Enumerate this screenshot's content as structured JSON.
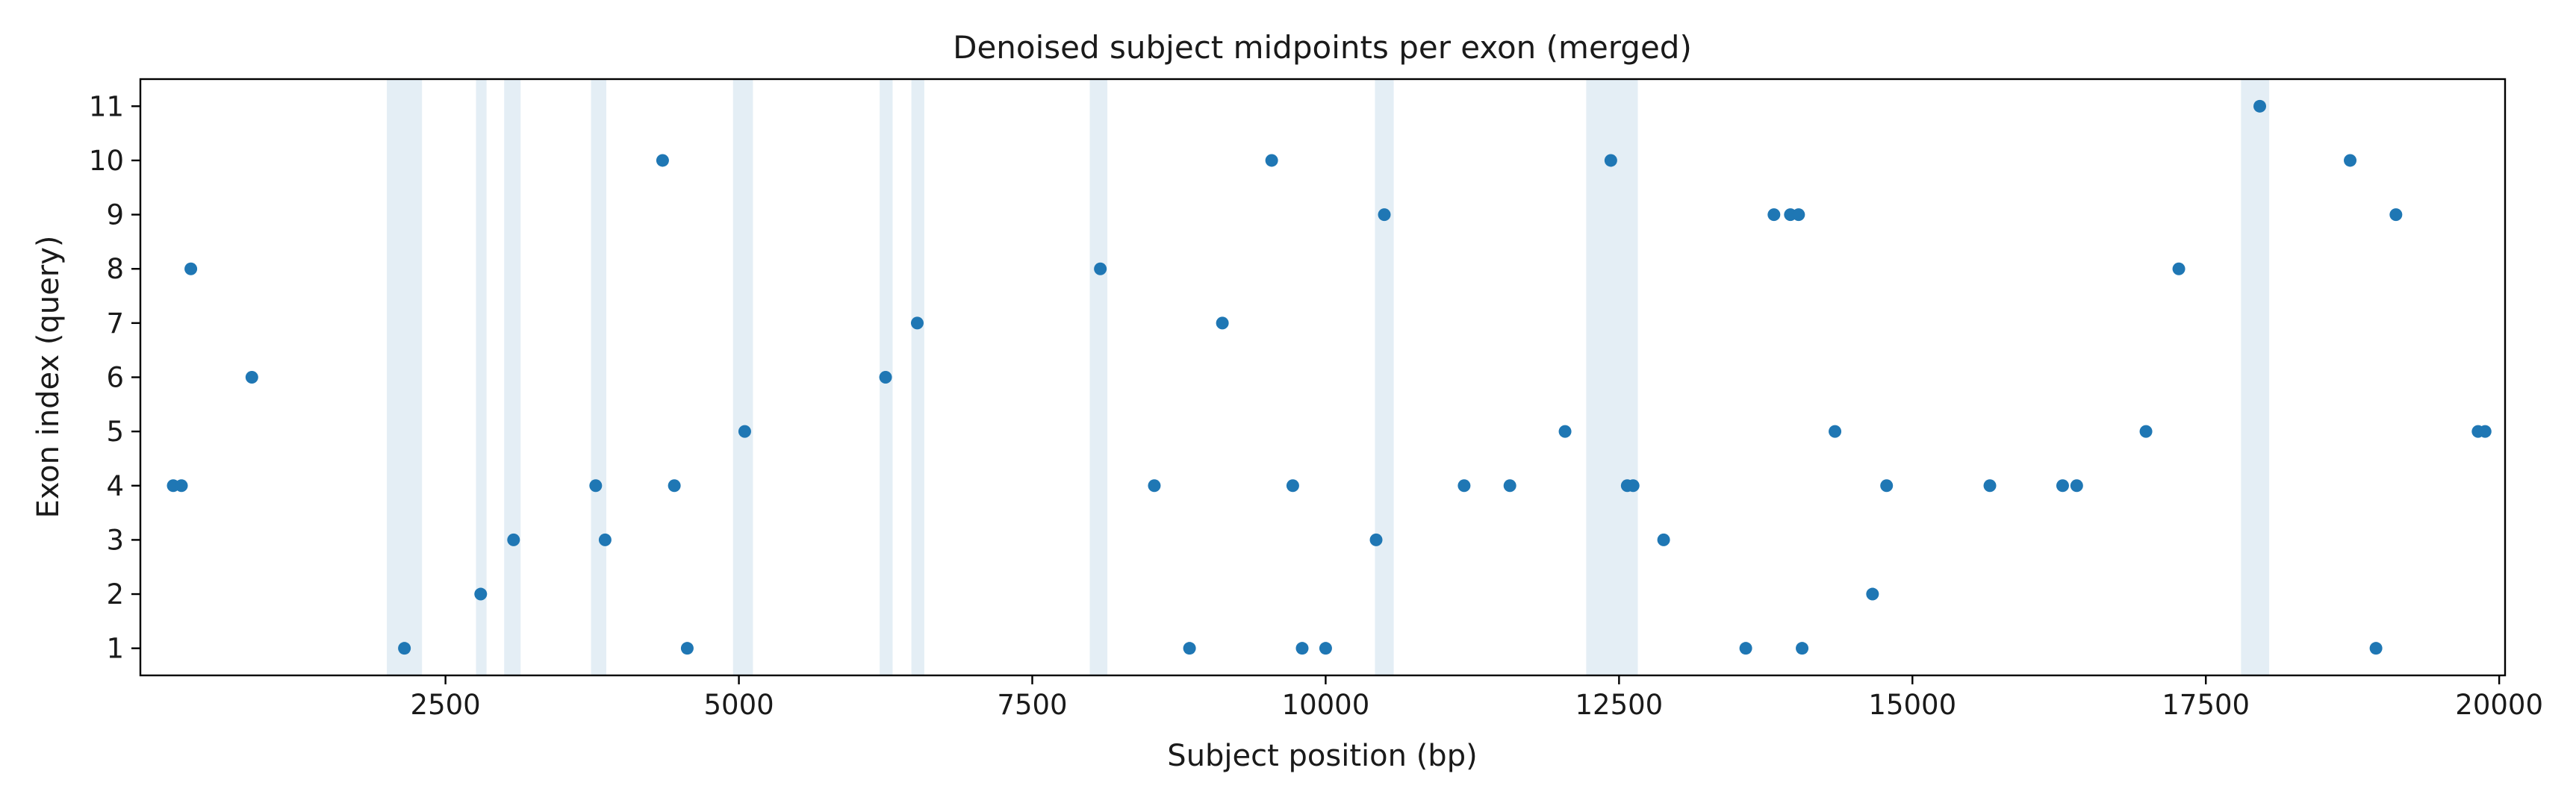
{
  "chart_data": {
    "type": "scatter",
    "title": "Denoised subject midpoints per exon (merged)",
    "xlabel": "Subject position (bp)",
    "ylabel": "Exon index (query)",
    "xlim": [
      -100,
      20050
    ],
    "ylim": [
      0.5,
      11.5
    ],
    "xticks": [
      2500,
      5000,
      7500,
      10000,
      12500,
      15000,
      17500,
      20000
    ],
    "yticks": [
      1,
      2,
      3,
      4,
      5,
      6,
      7,
      8,
      9,
      10,
      11
    ],
    "grid": false,
    "legend": "none",
    "colors": {
      "points": "#1f77b4",
      "bands": "#e4eef5",
      "axes": "#000000"
    },
    "bands": [
      [
        2000,
        2300
      ],
      [
        2760,
        2850
      ],
      [
        3000,
        3140
      ],
      [
        3740,
        3870
      ],
      [
        4950,
        5120
      ],
      [
        6200,
        6310
      ],
      [
        6470,
        6580
      ],
      [
        7990,
        8140
      ],
      [
        10420,
        10580
      ],
      [
        12220,
        12660
      ],
      [
        17800,
        18040
      ]
    ],
    "points": [
      {
        "x": 180,
        "y": 4
      },
      {
        "x": 250,
        "y": 4
      },
      {
        "x": 330,
        "y": 8
      },
      {
        "x": 850,
        "y": 6
      },
      {
        "x": 2150,
        "y": 1
      },
      {
        "x": 2800,
        "y": 2
      },
      {
        "x": 3080,
        "y": 3
      },
      {
        "x": 3780,
        "y": 4
      },
      {
        "x": 3860,
        "y": 3
      },
      {
        "x": 4350,
        "y": 10
      },
      {
        "x": 4450,
        "y": 4
      },
      {
        "x": 4560,
        "y": 1
      },
      {
        "x": 5050,
        "y": 5
      },
      {
        "x": 6250,
        "y": 6
      },
      {
        "x": 6520,
        "y": 7
      },
      {
        "x": 8080,
        "y": 8
      },
      {
        "x": 8540,
        "y": 4
      },
      {
        "x": 8840,
        "y": 1
      },
      {
        "x": 9120,
        "y": 7
      },
      {
        "x": 9540,
        "y": 10
      },
      {
        "x": 9720,
        "y": 4
      },
      {
        "x": 9800,
        "y": 1
      },
      {
        "x": 10000,
        "y": 1
      },
      {
        "x": 10430,
        "y": 3
      },
      {
        "x": 10500,
        "y": 9
      },
      {
        "x": 11180,
        "y": 4
      },
      {
        "x": 11570,
        "y": 4
      },
      {
        "x": 12040,
        "y": 5
      },
      {
        "x": 12430,
        "y": 10
      },
      {
        "x": 12570,
        "y": 4
      },
      {
        "x": 12620,
        "y": 4
      },
      {
        "x": 12880,
        "y": 3
      },
      {
        "x": 13580,
        "y": 1
      },
      {
        "x": 13820,
        "y": 9
      },
      {
        "x": 13960,
        "y": 9
      },
      {
        "x": 14030,
        "y": 9
      },
      {
        "x": 14060,
        "y": 1
      },
      {
        "x": 14340,
        "y": 5
      },
      {
        "x": 14660,
        "y": 2
      },
      {
        "x": 14780,
        "y": 4
      },
      {
        "x": 15660,
        "y": 4
      },
      {
        "x": 16280,
        "y": 4
      },
      {
        "x": 16400,
        "y": 4
      },
      {
        "x": 16990,
        "y": 5
      },
      {
        "x": 17270,
        "y": 8
      },
      {
        "x": 17960,
        "y": 11
      },
      {
        "x": 18730,
        "y": 10
      },
      {
        "x": 18950,
        "y": 1
      },
      {
        "x": 19120,
        "y": 9
      },
      {
        "x": 19820,
        "y": 5
      },
      {
        "x": 19880,
        "y": 5
      }
    ]
  }
}
